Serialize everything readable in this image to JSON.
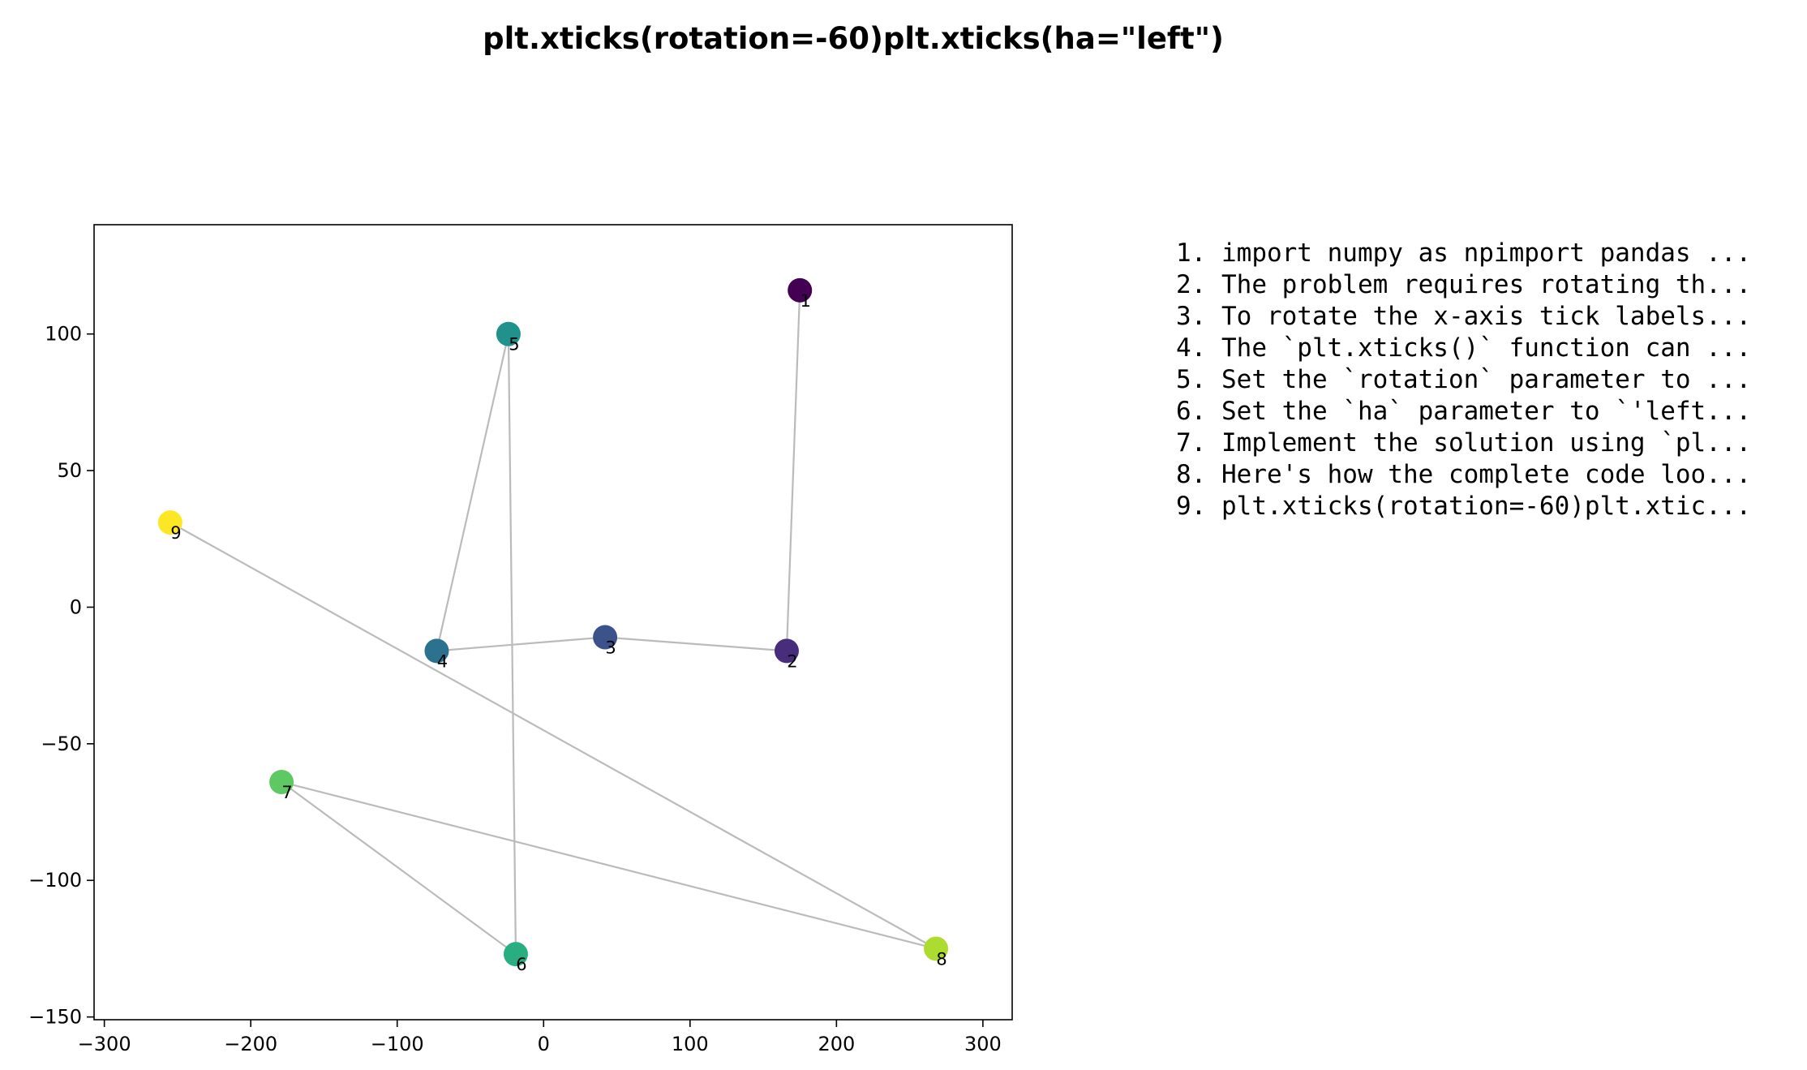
{
  "chart_data": {
    "type": "scatter",
    "title": "plt.xticks(rotation=-60)plt.xticks(ha=\"left\")",
    "xlabel": "",
    "ylabel": "",
    "xlim": [
      -307,
      320
    ],
    "ylim": [
      -151,
      140
    ],
    "xticks": [
      -300,
      -200,
      -100,
      0,
      100,
      200,
      300
    ],
    "yticks": [
      -150,
      -100,
      -50,
      0,
      50,
      100
    ],
    "xtick_labels": [
      "−300",
      "−200",
      "−100",
      "0",
      "100",
      "200",
      "300"
    ],
    "ytick_labels": [
      "−150",
      "−100",
      "−50",
      "0",
      "50",
      "100"
    ],
    "grid": false,
    "connect_points": true,
    "line_color": "#bbbbbb",
    "points": [
      {
        "label": "1",
        "x": 175,
        "y": 116,
        "color": "#440154"
      },
      {
        "label": "2",
        "x": 166,
        "y": -16,
        "color": "#472d7b"
      },
      {
        "label": "3",
        "x": 42,
        "y": -11,
        "color": "#3b528b"
      },
      {
        "label": "4",
        "x": -73,
        "y": -16,
        "color": "#2c728e"
      },
      {
        "label": "5",
        "x": -24,
        "y": 100,
        "color": "#21918c"
      },
      {
        "label": "6",
        "x": -19,
        "y": -127,
        "color": "#28ae80"
      },
      {
        "label": "7",
        "x": -179,
        "y": -64,
        "color": "#5ec962"
      },
      {
        "label": "8",
        "x": 268,
        "y": -125,
        "color": "#addc30"
      },
      {
        "label": "9",
        "x": -255,
        "y": 31,
        "color": "#fde725"
      }
    ]
  },
  "steps": [
    "1. import numpy as npimport pandas ...",
    "2. The problem requires rotating th...",
    "3. To rotate the x-axis tick labels...",
    "4. The `plt.xticks()` function can ...",
    "5. Set the `rotation` parameter to ...",
    "6. Set the `ha` parameter to `'left...",
    "7. Implement the solution using `pl...",
    "8. Here's how the complete code loo...",
    "9. plt.xticks(rotation=-60)plt.xtic..."
  ]
}
